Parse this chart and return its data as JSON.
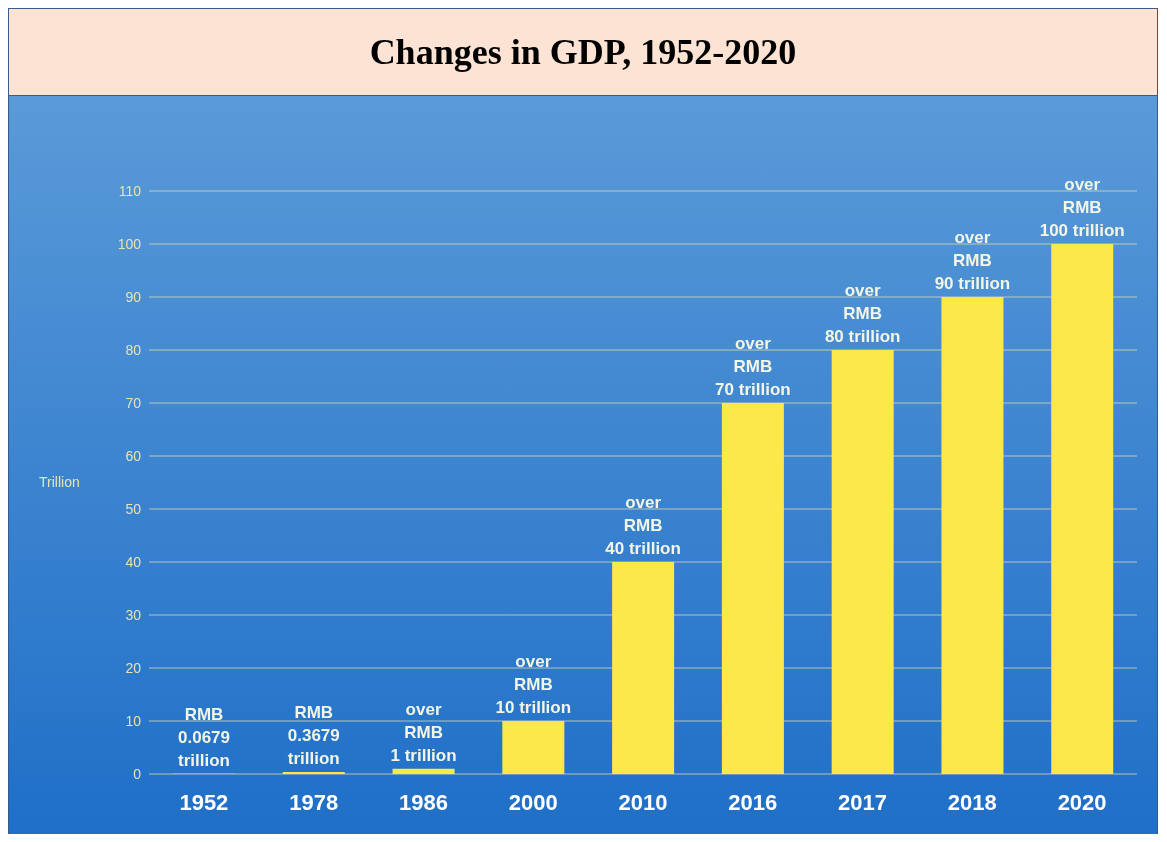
{
  "chart_data": {
    "type": "bar",
    "title": "Changes in GDP, 1952-2020",
    "ylabel": "Trillion",
    "categories": [
      "1952",
      "1978",
      "1986",
      "2000",
      "2010",
      "2016",
      "2017",
      "2018",
      "2020"
    ],
    "values": [
      0.0679,
      0.3679,
      1,
      10,
      40,
      70,
      80,
      90,
      100
    ],
    "value_labels": [
      "RMB\n0.0679\ntrillion",
      "RMB\n0.3679\ntrillion",
      "over\nRMB\n1 trillion",
      "over\nRMB\n10 trillion",
      "over\nRMB\n40 trillion",
      "over\nRMB\n70 trillion",
      "over\nRMB\n80 trillion",
      "over\nRMB\n90 trillion",
      "over\nRMB\n100 trillion"
    ],
    "color": "#fde84a",
    "ylim": [
      0,
      110
    ],
    "yticks": [
      0,
      10,
      20,
      30,
      40,
      50,
      60,
      70,
      80,
      90,
      100,
      110
    ],
    "grid": "y"
  }
}
